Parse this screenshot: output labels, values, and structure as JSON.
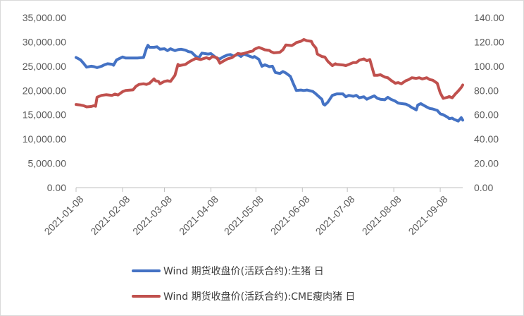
{
  "chart_data": {
    "type": "line",
    "title": "",
    "xlabel": "",
    "ylabel": "",
    "grid": false,
    "legend_position": "bottom",
    "x_range": [
      "2021-01-08",
      "2021-09-23"
    ],
    "x_ticks": [
      "2021-01-08",
      "2021-02-08",
      "2021-03-08",
      "2021-04-08",
      "2021-05-08",
      "2021-06-08",
      "2021-07-08",
      "2021-08-08",
      "2021-09-08"
    ],
    "y_left": {
      "range": [
        0,
        35000
      ],
      "tick_values": [
        0,
        5000,
        10000,
        15000,
        20000,
        25000,
        30000,
        35000
      ],
      "tick_labels": [
        "0.00",
        "5,000.00",
        "10,000.00",
        "15,000.00",
        "20,000.00",
        "25,000.00",
        "30,000.00",
        "35,000.00"
      ]
    },
    "y_right": {
      "range": [
        0,
        140
      ],
      "tick_values": [
        0,
        20,
        40,
        60,
        80,
        100,
        120,
        140
      ],
      "tick_labels": [
        "0.00",
        "20.00",
        "40.00",
        "60.00",
        "80.00",
        "100.00",
        "120.00",
        "140.00"
      ]
    },
    "series": [
      {
        "name": "Wind 期货收盘价(活跃合约):生猪 日",
        "axis": "left",
        "color": "#4472C4",
        "points": [
          [
            "2021-01-08",
            26800
          ],
          [
            "2021-01-11",
            26300
          ],
          [
            "2021-01-13",
            25600
          ],
          [
            "2021-01-15",
            24800
          ],
          [
            "2021-01-18",
            25000
          ],
          [
            "2021-01-20",
            24900
          ],
          [
            "2021-01-22",
            24700
          ],
          [
            "2021-01-25",
            25000
          ],
          [
            "2021-01-27",
            25300
          ],
          [
            "2021-01-29",
            25500
          ],
          [
            "2021-02-01",
            25400
          ],
          [
            "2021-02-02",
            25200
          ],
          [
            "2021-02-04",
            26300
          ],
          [
            "2021-02-08",
            26900
          ],
          [
            "2021-02-10",
            26700
          ],
          [
            "2021-02-18",
            26700
          ],
          [
            "2021-02-22",
            26800
          ],
          [
            "2021-02-24",
            28700
          ],
          [
            "2021-02-25",
            29300
          ],
          [
            "2021-02-26",
            28900
          ],
          [
            "2021-03-01",
            28900
          ],
          [
            "2021-03-03",
            29000
          ],
          [
            "2021-03-05",
            28500
          ],
          [
            "2021-03-08",
            28600
          ],
          [
            "2021-03-10",
            28200
          ],
          [
            "2021-03-12",
            28600
          ],
          [
            "2021-03-15",
            28200
          ],
          [
            "2021-03-17",
            28400
          ],
          [
            "2021-03-19",
            28500
          ],
          [
            "2021-03-22",
            28300
          ],
          [
            "2021-03-24",
            28000
          ],
          [
            "2021-03-26",
            27900
          ],
          [
            "2021-03-29",
            27000
          ],
          [
            "2021-03-31",
            26800
          ],
          [
            "2021-04-02",
            27700
          ],
          [
            "2021-04-06",
            27500
          ],
          [
            "2021-04-08",
            27600
          ],
          [
            "2021-04-12",
            26600
          ],
          [
            "2021-04-14",
            26500
          ],
          [
            "2021-04-16",
            26900
          ],
          [
            "2021-04-19",
            27300
          ],
          [
            "2021-04-21",
            27400
          ],
          [
            "2021-04-23",
            27100
          ],
          [
            "2021-04-26",
            27400
          ],
          [
            "2021-04-28",
            27000
          ],
          [
            "2021-04-30",
            27500
          ],
          [
            "2021-05-06",
            26800
          ],
          [
            "2021-05-07",
            27000
          ],
          [
            "2021-05-10",
            26400
          ],
          [
            "2021-05-12",
            25000
          ],
          [
            "2021-05-14",
            25300
          ],
          [
            "2021-05-17",
            24900
          ],
          [
            "2021-05-19",
            25000
          ],
          [
            "2021-05-21",
            23700
          ],
          [
            "2021-05-24",
            23500
          ],
          [
            "2021-05-26",
            23900
          ],
          [
            "2021-05-28",
            23600
          ],
          [
            "2021-05-31",
            22900
          ],
          [
            "2021-06-02",
            21400
          ],
          [
            "2021-06-04",
            20000
          ],
          [
            "2021-06-07",
            20100
          ],
          [
            "2021-06-09",
            20000
          ],
          [
            "2021-06-11",
            20100
          ],
          [
            "2021-06-15",
            19800
          ],
          [
            "2021-06-17",
            19300
          ],
          [
            "2021-06-21",
            18200
          ],
          [
            "2021-06-22",
            17200
          ],
          [
            "2021-06-23",
            17000
          ],
          [
            "2021-06-25",
            17600
          ],
          [
            "2021-06-28",
            19000
          ],
          [
            "2021-07-01",
            19300
          ],
          [
            "2021-07-05",
            19300
          ],
          [
            "2021-07-07",
            18700
          ],
          [
            "2021-07-09",
            19000
          ],
          [
            "2021-07-12",
            18800
          ],
          [
            "2021-07-14",
            19000
          ],
          [
            "2021-07-16",
            18500
          ],
          [
            "2021-07-19",
            18700
          ],
          [
            "2021-07-21",
            18200
          ],
          [
            "2021-07-23",
            18500
          ],
          [
            "2021-07-26",
            18900
          ],
          [
            "2021-07-28",
            18400
          ],
          [
            "2021-07-30",
            18200
          ],
          [
            "2021-08-02",
            18100
          ],
          [
            "2021-08-04",
            18600
          ],
          [
            "2021-08-06",
            18200
          ],
          [
            "2021-08-09",
            17800
          ],
          [
            "2021-08-11",
            17400
          ],
          [
            "2021-08-13",
            17300
          ],
          [
            "2021-08-16",
            17200
          ],
          [
            "2021-08-18",
            16900
          ],
          [
            "2021-08-20",
            16500
          ],
          [
            "2021-08-23",
            16000
          ],
          [
            "2021-08-24",
            17000
          ],
          [
            "2021-08-26",
            17300
          ],
          [
            "2021-08-30",
            16600
          ],
          [
            "2021-09-01",
            16300
          ],
          [
            "2021-09-03",
            16200
          ],
          [
            "2021-09-06",
            15900
          ],
          [
            "2021-09-08",
            15200
          ],
          [
            "2021-09-10",
            15000
          ],
          [
            "2021-09-13",
            14500
          ],
          [
            "2021-09-14",
            14200
          ],
          [
            "2021-09-16",
            14300
          ],
          [
            "2021-09-17",
            14100
          ],
          [
            "2021-09-20",
            13700
          ],
          [
            "2021-09-22",
            14400
          ],
          [
            "2021-09-23",
            13900
          ]
        ]
      },
      {
        "name": "Wind 期货收盘价(活跃合约):CME瘦肉猪 日",
        "axis": "right",
        "color": "#C0504D",
        "points": [
          [
            "2021-01-08",
            68.5
          ],
          [
            "2021-01-11",
            68.0
          ],
          [
            "2021-01-13",
            67.5
          ],
          [
            "2021-01-15",
            66.5
          ],
          [
            "2021-01-18",
            66.8
          ],
          [
            "2021-01-20",
            67.5
          ],
          [
            "2021-01-21",
            67.0
          ],
          [
            "2021-01-22",
            74.5
          ],
          [
            "2021-01-25",
            76.0
          ],
          [
            "2021-01-28",
            76.5
          ],
          [
            "2021-02-01",
            76.0
          ],
          [
            "2021-02-03",
            77.0
          ],
          [
            "2021-02-05",
            76.3
          ],
          [
            "2021-02-08",
            79.0
          ],
          [
            "2021-02-10",
            80.0
          ],
          [
            "2021-02-12",
            80.2
          ],
          [
            "2021-02-15",
            80.5
          ],
          [
            "2021-02-17",
            83.5
          ],
          [
            "2021-02-19",
            85.0
          ],
          [
            "2021-02-22",
            85.5
          ],
          [
            "2021-02-24",
            85.0
          ],
          [
            "2021-02-26",
            86.0
          ],
          [
            "2021-03-01",
            89.5
          ],
          [
            "2021-03-02",
            88.0
          ],
          [
            "2021-03-04",
            87.5
          ],
          [
            "2021-03-05",
            85.5
          ],
          [
            "2021-03-08",
            87.5
          ],
          [
            "2021-03-10",
            88.0
          ],
          [
            "2021-03-12",
            87.5
          ],
          [
            "2021-03-15",
            92.5
          ],
          [
            "2021-03-17",
            101.5
          ],
          [
            "2021-03-18",
            100.5
          ],
          [
            "2021-03-22",
            101.5
          ],
          [
            "2021-03-25",
            104.0
          ],
          [
            "2021-03-29",
            106.5
          ],
          [
            "2021-04-01",
            105.5
          ],
          [
            "2021-04-05",
            107.0
          ],
          [
            "2021-04-07",
            106.0
          ],
          [
            "2021-04-09",
            108.0
          ],
          [
            "2021-04-12",
            107.0
          ],
          [
            "2021-04-14",
            102.5
          ],
          [
            "2021-04-16",
            104.0
          ],
          [
            "2021-04-19",
            106.0
          ],
          [
            "2021-04-22",
            107.0
          ],
          [
            "2021-04-26",
            110.5
          ],
          [
            "2021-04-28",
            110.0
          ],
          [
            "2021-04-30",
            110.5
          ],
          [
            "2021-05-04",
            112.0
          ],
          [
            "2021-05-06",
            112.5
          ],
          [
            "2021-05-07",
            114.0
          ],
          [
            "2021-05-10",
            115.5
          ],
          [
            "2021-05-12",
            114.5
          ],
          [
            "2021-05-14",
            113.5
          ],
          [
            "2021-05-17",
            113.0
          ],
          [
            "2021-05-18",
            112.0
          ],
          [
            "2021-05-20",
            111.0
          ],
          [
            "2021-05-24",
            111.5
          ],
          [
            "2021-05-26",
            113.5
          ],
          [
            "2021-05-28",
            117.5
          ],
          [
            "2021-06-01",
            117.0
          ],
          [
            "2021-06-03",
            118.5
          ],
          [
            "2021-06-04",
            119.5
          ],
          [
            "2021-06-07",
            120.5
          ],
          [
            "2021-06-09",
            122.0
          ],
          [
            "2021-06-11",
            121.0
          ],
          [
            "2021-06-14",
            120.5
          ],
          [
            "2021-06-15",
            118.0
          ],
          [
            "2021-06-17",
            115.0
          ],
          [
            "2021-06-18",
            110.0
          ],
          [
            "2021-06-21",
            108.0
          ],
          [
            "2021-06-23",
            107.5
          ],
          [
            "2021-06-25",
            104.0
          ],
          [
            "2021-06-28",
            100.5
          ],
          [
            "2021-06-30",
            102.0
          ],
          [
            "2021-07-01",
            101.5
          ],
          [
            "2021-07-05",
            101.0
          ],
          [
            "2021-07-07",
            100.5
          ],
          [
            "2021-07-09",
            101.5
          ],
          [
            "2021-07-12",
            103.0
          ],
          [
            "2021-07-14",
            103.0
          ],
          [
            "2021-07-16",
            105.0
          ],
          [
            "2021-07-19",
            106.0
          ],
          [
            "2021-07-21",
            104.5
          ],
          [
            "2021-07-23",
            105.5
          ],
          [
            "2021-07-26",
            92.5
          ],
          [
            "2021-07-28",
            92.5
          ],
          [
            "2021-07-30",
            93.0
          ],
          [
            "2021-08-02",
            91.0
          ],
          [
            "2021-08-04",
            90.5
          ],
          [
            "2021-08-06",
            88.5
          ],
          [
            "2021-08-09",
            86.0
          ],
          [
            "2021-08-11",
            86.5
          ],
          [
            "2021-08-13",
            85.5
          ],
          [
            "2021-08-16",
            88.0
          ],
          [
            "2021-08-18",
            89.0
          ],
          [
            "2021-08-20",
            90.5
          ],
          [
            "2021-08-23",
            90.0
          ],
          [
            "2021-08-25",
            90.5
          ],
          [
            "2021-08-27",
            89.5
          ],
          [
            "2021-08-30",
            90.5
          ],
          [
            "2021-09-01",
            89.0
          ],
          [
            "2021-09-03",
            88.5
          ],
          [
            "2021-09-06",
            86.0
          ],
          [
            "2021-09-08",
            78.0
          ],
          [
            "2021-09-10",
            73.5
          ],
          [
            "2021-09-13",
            74.5
          ],
          [
            "2021-09-14",
            75.0
          ],
          [
            "2021-09-16",
            74.0
          ],
          [
            "2021-09-18",
            77.0
          ],
          [
            "2021-09-20",
            79.5
          ],
          [
            "2021-09-22",
            82.5
          ],
          [
            "2021-09-23",
            84.5
          ]
        ]
      }
    ]
  }
}
